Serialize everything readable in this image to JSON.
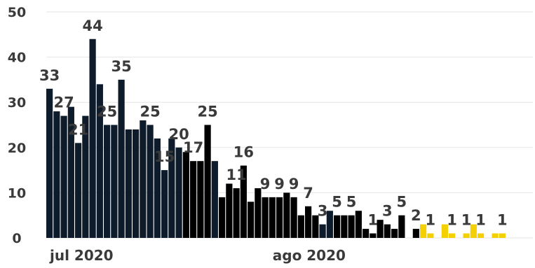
{
  "chart_data": {
    "type": "bar",
    "title": "",
    "xlabel": "",
    "ylabel": "",
    "ylim": [
      0,
      50
    ],
    "y_ticks": [
      0,
      10,
      20,
      30,
      40,
      50
    ],
    "x_tick_labels": [
      {
        "label": "jul 2020",
        "at_index": 0
      },
      {
        "label": "ago 2020",
        "at_index": 31
      }
    ],
    "grid": true,
    "colors": {
      "navy": "#0d1b2a",
      "black": "#000000",
      "yellow": "#f5d000",
      "text": "#3a3a3a",
      "grid": "#e6e6e6"
    },
    "values": [
      33,
      28,
      27,
      29,
      21,
      27,
      44,
      34,
      25,
      25,
      35,
      24,
      24,
      26,
      25,
      22,
      15,
      22,
      20,
      19,
      17,
      17,
      25,
      17,
      9,
      12,
      11,
      16,
      8,
      11,
      9,
      9,
      9,
      10,
      9,
      5,
      7,
      5,
      3,
      6,
      5,
      5,
      5,
      6,
      2,
      1,
      4,
      3,
      2,
      5,
      null,
      2,
      3,
      1,
      null,
      3,
      1,
      null,
      1,
      3,
      1,
      null,
      1,
      1
    ],
    "bar_colors": [
      "navy",
      "navy",
      "navy",
      "navy",
      "navy",
      "navy",
      "navy",
      "navy",
      "navy",
      "navy",
      "navy",
      "navy",
      "navy",
      "navy",
      "navy",
      "navy",
      "navy",
      "navy",
      "navy",
      "black",
      "black",
      "black",
      "black",
      "navy",
      "black",
      "black",
      "black",
      "black",
      "black",
      "black",
      "black",
      "black",
      "black",
      "black",
      "black",
      "black",
      "black",
      "black",
      "navy",
      "navy",
      "black",
      "black",
      "black",
      "black",
      "black",
      "black",
      "black",
      "black",
      "black",
      "black",
      null,
      "black",
      "yellow",
      "yellow",
      null,
      "yellow",
      "yellow",
      null,
      "yellow",
      "yellow",
      "yellow",
      null,
      "yellow",
      "yellow"
    ],
    "data_labels": [
      {
        "index": 0,
        "text": "33"
      },
      {
        "index": 2,
        "text": "27"
      },
      {
        "index": 4,
        "text": "21"
      },
      {
        "index": 6,
        "text": "44"
      },
      {
        "index": 8,
        "text": "25"
      },
      {
        "index": 10,
        "text": "35"
      },
      {
        "index": 14,
        "text": "25"
      },
      {
        "index": 16,
        "text": "15"
      },
      {
        "index": 18,
        "text": "20"
      },
      {
        "index": 20,
        "text": "17"
      },
      {
        "index": 22,
        "text": "25"
      },
      {
        "index": 26,
        "text": "11"
      },
      {
        "index": 27,
        "text": "16"
      },
      {
        "index": 30,
        "text": "9"
      },
      {
        "index": 32,
        "text": "9"
      },
      {
        "index": 34,
        "text": "9"
      },
      {
        "index": 36,
        "text": "7"
      },
      {
        "index": 38,
        "text": "3"
      },
      {
        "index": 40,
        "text": "5"
      },
      {
        "index": 42,
        "text": "5"
      },
      {
        "index": 45,
        "text": "1"
      },
      {
        "index": 47,
        "text": "3"
      },
      {
        "index": 49,
        "text": "5"
      },
      {
        "index": 51,
        "text": "2"
      },
      {
        "index": 53,
        "text": "1"
      },
      {
        "index": 56,
        "text": "1"
      },
      {
        "index": 58,
        "text": "1"
      },
      {
        "index": 60,
        "text": "1"
      },
      {
        "index": 63,
        "text": "1"
      }
    ]
  }
}
